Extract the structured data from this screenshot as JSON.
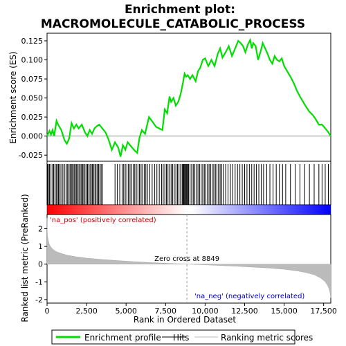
{
  "chart_data": {
    "type": "line",
    "title": "Enrichment plot:",
    "subtitle": "MACROMOLECULE_CATABOLIC_PROCESS",
    "top_panel": {
      "ylabel": "Enrichment score (ES)",
      "ylim": [
        -0.033,
        0.135
      ],
      "y_ticks": [
        -0.025,
        0.0,
        0.025,
        0.05,
        0.075,
        0.1,
        0.125
      ],
      "y_tick_labels": [
        "-0.025",
        "0.000",
        "0.025",
        "0.050",
        "0.075",
        "0.100",
        "0.125"
      ],
      "series": [
        {
          "name": "Enrichment profile",
          "color": "#00dd00",
          "x": [
            0,
            150,
            250,
            350,
            450,
            600,
            700,
            900,
            1100,
            1250,
            1400,
            1550,
            1700,
            1850,
            2000,
            2200,
            2400,
            2550,
            2700,
            2850,
            3000,
            3150,
            3300,
            3500,
            3700,
            3900,
            4100,
            4300,
            4500,
            4650,
            4800,
            4950,
            5100,
            5300,
            5500,
            5700,
            5850,
            6000,
            6200,
            6450,
            6700,
            6900,
            7100,
            7300,
            7450,
            7600,
            7750,
            7850,
            8000,
            8150,
            8300,
            8450,
            8600,
            8700,
            8800,
            8900,
            9050,
            9200,
            9400,
            9550,
            9700,
            9850,
            10000,
            10200,
            10400,
            10600,
            10800,
            10950,
            11100,
            11300,
            11500,
            11700,
            11900,
            12100,
            12250,
            12400,
            12550,
            12700,
            12850,
            12950,
            13050,
            13200,
            13350,
            13500,
            13650,
            13800,
            13950,
            14100,
            14250,
            14400,
            14550,
            14700,
            14850,
            15000,
            15200,
            15400,
            15600,
            15800,
            16000,
            16200,
            16400,
            16600,
            16800,
            17000,
            17200,
            17400,
            17600,
            17800,
            17950
          ],
          "y": [
            0.0,
            0.007,
            0.002,
            0.008,
            0.0,
            0.02,
            0.015,
            0.008,
            -0.005,
            -0.01,
            -0.003,
            0.017,
            0.01,
            0.015,
            0.01,
            0.015,
            0.005,
            0.0,
            0.008,
            0.003,
            0.01,
            0.013,
            0.015,
            0.01,
            0.005,
            -0.005,
            -0.018,
            -0.008,
            -0.015,
            -0.027,
            -0.012,
            -0.018,
            -0.008,
            -0.013,
            -0.018,
            -0.022,
            -0.002,
            0.008,
            0.003,
            0.025,
            0.018,
            0.012,
            0.01,
            0.008,
            0.035,
            0.03,
            0.052,
            0.045,
            0.05,
            0.04,
            0.045,
            0.055,
            0.07,
            0.082,
            0.078,
            0.08,
            0.075,
            0.08,
            0.072,
            0.085,
            0.09,
            0.1,
            0.102,
            0.092,
            0.1,
            0.092,
            0.108,
            0.115,
            0.103,
            0.11,
            0.118,
            0.105,
            0.115,
            0.125,
            0.122,
            0.118,
            0.11,
            0.12,
            0.126,
            0.115,
            0.122,
            0.118,
            0.1,
            0.11,
            0.122,
            0.115,
            0.108,
            0.1,
            0.095,
            0.105,
            0.1,
            0.098,
            0.102,
            0.092,
            0.085,
            0.078,
            0.07,
            0.06,
            0.052,
            0.045,
            0.038,
            0.032,
            0.028,
            0.022,
            0.015,
            0.015,
            0.01,
            0.005,
            0.0
          ]
        }
      ]
    },
    "hits": {
      "name": "Hits",
      "color": "#000000",
      "x": [
        30,
        80,
        150,
        250,
        350,
        420,
        500,
        580,
        650,
        720,
        800,
        880,
        1000,
        1100,
        1200,
        1280,
        1380,
        1450,
        1520,
        1580,
        1650,
        1720,
        1800,
        1870,
        1950,
        2020,
        2100,
        2180,
        2250,
        2320,
        2400,
        2480,
        2560,
        2640,
        2720,
        2800,
        2870,
        2950,
        3030,
        3100,
        3180,
        3260,
        3340,
        3420,
        3500,
        4300,
        4450,
        4600,
        4750,
        4850,
        4950,
        5050,
        5150,
        5250,
        5350,
        5450,
        5550,
        5650,
        5750,
        5850,
        5950,
        6050,
        6150,
        6250,
        6350,
        6500,
        6650,
        6800,
        6950,
        7100,
        7250,
        7350,
        7450,
        7550,
        7650,
        7750,
        7850,
        7950,
        8050,
        8150,
        8250,
        8350,
        8450,
        8550,
        8600,
        8650,
        8700,
        8750,
        8800,
        8850,
        8900,
        8950,
        9050,
        9150,
        9250,
        9350,
        9450,
        9550,
        9650,
        9750,
        9850,
        9950,
        10050,
        10150,
        10250,
        10350,
        10450,
        10550,
        10650,
        10750,
        10850,
        10950,
        11050,
        11150,
        11300,
        11450,
        11600,
        11750,
        11900,
        12050,
        12200,
        12350,
        12500,
        12650,
        12800,
        12950,
        13100,
        13250,
        13400,
        13550,
        13700,
        13900,
        14100,
        14300,
        14500,
        14700,
        14900,
        15100,
        15400,
        15700,
        16000,
        16300,
        16600,
        16900,
        17200,
        17400,
        17600,
        17800
      ],
      "xlim": [
        0,
        17952
      ]
    },
    "color_bar": {
      "left_color": "#ff0000",
      "mid_color": "#ffffff",
      "right_color": "#0000ff"
    },
    "bottom_panel": {
      "ylabel": "Ranked list metric (PreRanked)",
      "ylim": [
        -2.2,
        2.8
      ],
      "y_ticks": [
        -2,
        -1,
        0,
        1,
        2
      ],
      "y_tick_labels": [
        "-2",
        "-1",
        "0",
        "1",
        "2"
      ],
      "series": [
        {
          "name": "Ranking metric scores",
          "color": "#bbbbbb",
          "x": [
            0,
            10,
            30,
            60,
            100,
            150,
            250,
            400,
            600,
            900,
            1300,
            1800,
            2500,
            3500,
            4500,
            5500,
            6500,
            7500,
            8849,
            10000,
            11000,
            12000,
            13000,
            14000,
            15000,
            15800,
            16400,
            16900,
            17300,
            17600,
            17780,
            17880,
            17952
          ],
          "y": [
            2.6,
            1.9,
            1.6,
            1.4,
            1.25,
            1.1,
            0.95,
            0.82,
            0.7,
            0.6,
            0.5,
            0.42,
            0.34,
            0.26,
            0.2,
            0.14,
            0.09,
            0.05,
            0.0,
            -0.04,
            -0.08,
            -0.12,
            -0.17,
            -0.22,
            -0.29,
            -0.38,
            -0.48,
            -0.6,
            -0.78,
            -1.0,
            -1.25,
            -1.5,
            -1.9
          ]
        }
      ],
      "zero_cross_label": "Zero cross at 8849",
      "zero_cross": 8849,
      "pos_label": "'na_pos' (positively correlated)",
      "neg_label": "'na_neg' (negatively correlated)",
      "pos_color": "#cc0000",
      "neg_color": "#0000cc"
    },
    "xlabel": "Rank in Ordered Dataset",
    "xlim": [
      0,
      17952
    ],
    "x_ticks": [
      0,
      2500,
      5000,
      7500,
      10000,
      12500,
      15000,
      17500
    ],
    "x_tick_labels": [
      "0",
      "2,500",
      "5,000",
      "7,500",
      "10,000",
      "12,500",
      "15,000",
      "17,500"
    ],
    "legend": {
      "placement": "bottom",
      "items": [
        {
          "label": "Enrichment profile",
          "color": "#00dd00",
          "kind": "thick-line"
        },
        {
          "label": "Hits",
          "color": "#000000",
          "kind": "thin-line"
        },
        {
          "label": "Ranking metric scores",
          "color": "#bbbbbb",
          "kind": "thin-line"
        }
      ]
    }
  }
}
